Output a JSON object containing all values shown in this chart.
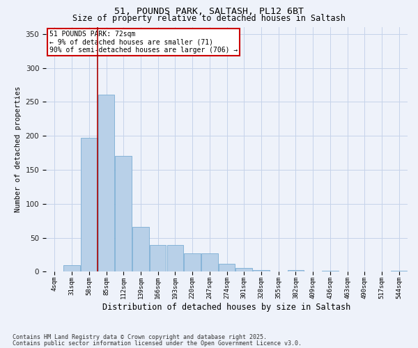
{
  "title1": "51, POUNDS PARK, SALTASH, PL12 6BT",
  "title2": "Size of property relative to detached houses in Saltash",
  "xlabel": "Distribution of detached houses by size in Saltash",
  "ylabel": "Number of detached properties",
  "categories": [
    "4sqm",
    "31sqm",
    "58sqm",
    "85sqm",
    "112sqm",
    "139sqm",
    "166sqm",
    "193sqm",
    "220sqm",
    "247sqm",
    "274sqm",
    "301sqm",
    "328sqm",
    "355sqm",
    "382sqm",
    "409sqm",
    "436sqm",
    "463sqm",
    "490sqm",
    "517sqm",
    "544sqm"
  ],
  "bar_heights": [
    0,
    10,
    197,
    261,
    170,
    66,
    39,
    39,
    27,
    27,
    12,
    6,
    3,
    0,
    3,
    0,
    1,
    0,
    0,
    0,
    1
  ],
  "bar_color": "#b8d0e8",
  "bar_edge_color": "#7aadd4",
  "vline_x": 2.5,
  "vline_color": "#aa0000",
  "annotation_title": "51 POUNDS PARK: 72sqm",
  "annotation_line1": "← 9% of detached houses are smaller (71)",
  "annotation_line2": "90% of semi-detached houses are larger (706) →",
  "annotation_box_color": "white",
  "annotation_box_edge": "#cc0000",
  "ylim": [
    0,
    360
  ],
  "yticks": [
    0,
    50,
    100,
    150,
    200,
    250,
    300,
    350
  ],
  "footer1": "Contains HM Land Registry data © Crown copyright and database right 2025.",
  "footer2": "Contains public sector information licensed under the Open Government Licence v3.0.",
  "bg_color": "#eef2fa",
  "grid_color": "#c5d3ea"
}
